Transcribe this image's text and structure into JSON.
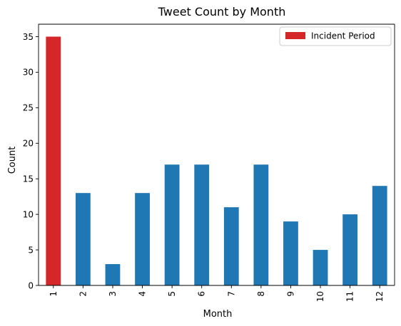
{
  "chart_data": {
    "type": "bar",
    "title": "Tweet Count by Month",
    "xlabel": "Month",
    "ylabel": "Count",
    "categories": [
      "1",
      "2",
      "3",
      "4",
      "5",
      "6",
      "7",
      "8",
      "9",
      "10",
      "11",
      "12"
    ],
    "values": [
      35,
      13,
      3,
      13,
      17,
      17,
      11,
      17,
      9,
      5,
      10,
      14
    ],
    "highlight_index": 0,
    "ylim": [
      0,
      36.75
    ],
    "yticks": [
      0,
      5,
      10,
      15,
      20,
      25,
      30,
      35
    ],
    "grid": false,
    "legend": {
      "placement": "top-right",
      "entries": [
        {
          "label": "Incident Period",
          "color": "#d62728"
        }
      ]
    },
    "colors": {
      "default": "#1f77b4",
      "highlight": "#d62728"
    }
  }
}
